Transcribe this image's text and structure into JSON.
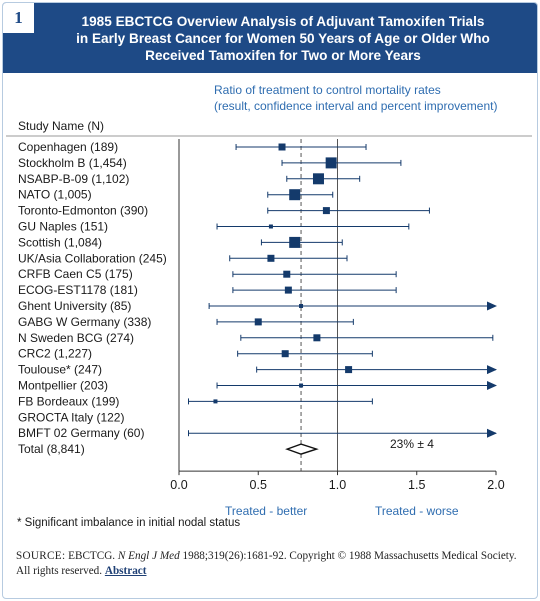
{
  "figure": {
    "number": "1",
    "title": "1985 EBCTCG Overview Analysis of Adjuvant Tamoxifen Trials\nin Early Breast Cancer for Women 50 Years of Age or Older Who\nReceived Tamoxifen for Two or More Years"
  },
  "chart_data": {
    "type": "forest",
    "subtitle_lines": [
      "Ratio of treatment to control mortality rates",
      "(result, confidence interval and percent improvement)"
    ],
    "column_header": "Study Name (N)",
    "xlim": [
      0.0,
      2.0
    ],
    "x_ticks": [
      "0.0",
      "0.5",
      "1.0",
      "1.5",
      "2.0"
    ],
    "x_tick_values": [
      0.0,
      0.5,
      1.0,
      1.5,
      2.0
    ],
    "reference_line": 1.0,
    "pooled_line": 0.77,
    "xlabel_left": "Treated - better",
    "xlabel_right": "Treated - worse",
    "studies": [
      {
        "name": "Copenhagen (189)",
        "ratio": 0.65,
        "ci": [
          0.36,
          1.18
        ],
        "weight": "medium"
      },
      {
        "name": "Stockholm B (1,454)",
        "ratio": 0.96,
        "ci": [
          0.65,
          1.4
        ],
        "weight": "large"
      },
      {
        "name": "NSABP-B-09 (1,102)",
        "ratio": 0.88,
        "ci": [
          0.68,
          1.14
        ],
        "weight": "large"
      },
      {
        "name": "NATO (1,005)",
        "ratio": 0.73,
        "ci": [
          0.56,
          0.97
        ],
        "weight": "large"
      },
      {
        "name": "Toronto-Edmonton (390)",
        "ratio": 0.93,
        "ci": [
          0.56,
          1.58
        ],
        "weight": "medium"
      },
      {
        "name": "GU Naples (151)",
        "ratio": 0.58,
        "ci": [
          0.24,
          1.45
        ],
        "weight": "small"
      },
      {
        "name": "Scottish (1,084)",
        "ratio": 0.73,
        "ci": [
          0.52,
          1.03
        ],
        "weight": "large"
      },
      {
        "name": "UK/Asia Collaboration (245)",
        "ratio": 0.58,
        "ci": [
          0.32,
          1.06
        ],
        "weight": "medium"
      },
      {
        "name": "CRFB Caen C5 (175)",
        "ratio": 0.68,
        "ci": [
          0.34,
          1.37
        ],
        "weight": "medium"
      },
      {
        "name": "ECOG-EST1178 (181)",
        "ratio": 0.69,
        "ci": [
          0.34,
          1.37
        ],
        "weight": "medium"
      },
      {
        "name": "Ghent University (85)",
        "ratio": 0.77,
        "ci": [
          0.19,
          2.0
        ],
        "weight": "small",
        "arrow": true
      },
      {
        "name": "GABG W Germany (338)",
        "ratio": 0.5,
        "ci": [
          0.24,
          1.1
        ],
        "weight": "medium"
      },
      {
        "name": "N Sweden BCG (274)",
        "ratio": 0.87,
        "ci": [
          0.39,
          1.98
        ],
        "weight": "medium"
      },
      {
        "name": "CRC2 (1,227)",
        "ratio": 0.67,
        "ci": [
          0.37,
          1.22
        ],
        "weight": "medium"
      },
      {
        "name": "Toulouse* (247)",
        "ratio": 1.07,
        "ci": [
          0.49,
          2.0
        ],
        "weight": "medium",
        "arrow": true
      },
      {
        "name": "Montpellier (203)",
        "ratio": 0.77,
        "ci": [
          0.24,
          2.0
        ],
        "weight": "small",
        "arrow": true
      },
      {
        "name": "FB Bordeaux (199)",
        "ratio": 0.23,
        "ci": [
          0.06,
          1.22
        ],
        "weight": "small"
      },
      {
        "name": "GROCTA Italy (122)",
        "ratio": null,
        "ci": null,
        "weight": null
      },
      {
        "name": "BMFT 02 Germany (60)",
        "ratio": null,
        "ci": [
          0.06,
          2.0
        ],
        "weight": null,
        "arrow": true
      }
    ],
    "total": {
      "name": "Total (8,841)",
      "ratio": 0.77,
      "ci": [
        0.72,
        0.83
      ],
      "label": "23% ± 4"
    }
  },
  "footnote": "* Significant imbalance in initial nodal status",
  "source": {
    "label": "SOURCE:",
    "text_before": " EBCTCG. ",
    "journal": "N Engl J Med",
    "text_after": " 1988;319(26):1681-92. Copyright © 1988 Massachusetts Medical Society. All rights reserved. ",
    "link": "Abstract"
  },
  "colors": {
    "header_bg": "#1e4a86",
    "marker": "#143a6b",
    "accent_text": "#2f6db0",
    "axis": "#333333"
  }
}
